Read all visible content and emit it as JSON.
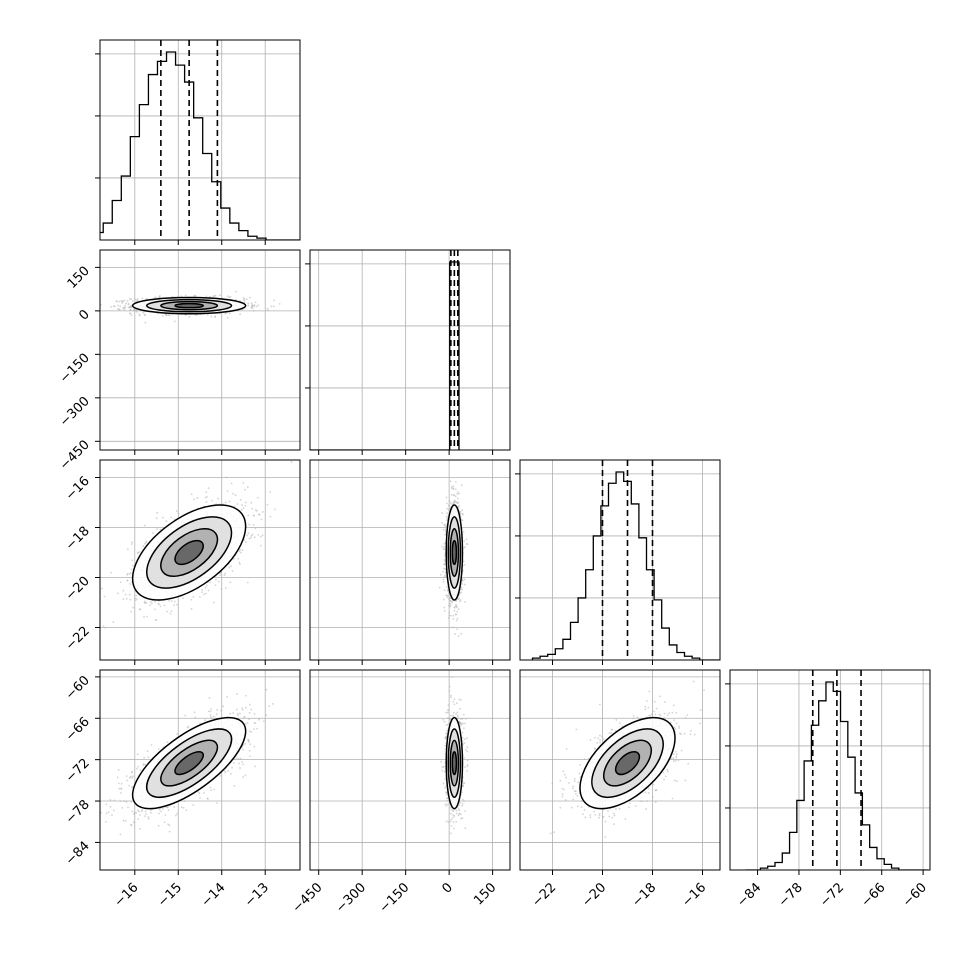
{
  "figure": {
    "kind": "corner-plot",
    "background": "#ffffff"
  },
  "chart_data": {
    "type": "corner",
    "parameters": [
      {
        "range": [
          -16.8,
          -12.2
        ],
        "ticks": [
          -16,
          -15,
          -14,
          -13
        ],
        "tick_labels": [
          "−16",
          "−15",
          "−14",
          "−13"
        ],
        "mean": -14.75,
        "std": 0.65,
        "quantiles": [
          -15.4,
          -14.75,
          -14.1
        ]
      },
      {
        "range": [
          -480,
          210
        ],
        "ticks": [
          -450,
          -300,
          -150,
          0,
          150
        ],
        "tick_labels": [
          "−450",
          "−300",
          "−150",
          "0",
          "150"
        ],
        "mean": 18,
        "std": 14,
        "quantiles": [
          6,
          18,
          30
        ]
      },
      {
        "range": [
          -23.3,
          -15.3
        ],
        "ticks": [
          -22,
          -20,
          -18,
          -16
        ],
        "tick_labels": [
          "−22",
          "−20",
          "−18",
          "−16"
        ],
        "mean": -19,
        "std": 0.95,
        "quantiles": [
          -20,
          -19,
          -18
        ]
      },
      {
        "range": [
          -88,
          -59
        ],
        "ticks": [
          -84,
          -78,
          -72,
          -66,
          -60
        ],
        "tick_labels": [
          "−84",
          "−78",
          "−72",
          "−66",
          "−60"
        ],
        "mean": -72.5,
        "std": 3.3,
        "quantiles": [
          -76,
          -72.5,
          -69
        ]
      }
    ],
    "histograms": [
      {
        "bins": 25,
        "counts": [
          0.01,
          0.02,
          0.04,
          0.09,
          0.21,
          0.34,
          0.55,
          0.72,
          0.88,
          0.95,
          1.0,
          0.93,
          0.84,
          0.65,
          0.46,
          0.31,
          0.17,
          0.09,
          0.05,
          0.02,
          0.01,
          0.0,
          0.0,
          0.0,
          0.0
        ]
      },
      {
        "bins": 1,
        "counts": [
          1.0
        ]
      },
      {
        "bins": 25,
        "counts": [
          0.01,
          0.02,
          0.03,
          0.06,
          0.11,
          0.2,
          0.33,
          0.48,
          0.66,
          0.82,
          0.94,
          1.0,
          0.95,
          0.83,
          0.65,
          0.48,
          0.32,
          0.17,
          0.08,
          0.04,
          0.02,
          0.01,
          0.0,
          0.0,
          0.0
        ]
      },
      {
        "bins": 25,
        "counts": [
          0.0,
          0.0,
          0.01,
          0.02,
          0.04,
          0.09,
          0.2,
          0.37,
          0.58,
          0.77,
          0.9,
          1.0,
          0.95,
          0.79,
          0.6,
          0.41,
          0.24,
          0.12,
          0.06,
          0.03,
          0.01,
          0.0,
          0.0,
          0.0,
          0.0
        ]
      }
    ],
    "correlations": {
      "1-0": 0.0,
      "2-0": 0.55,
      "2-1": 0.0,
      "3-0": 0.7,
      "3-1": 0.0,
      "3-2": 0.55
    },
    "contour_levels_sigma": [
      0.5,
      1.0,
      1.5,
      2.0
    ],
    "quantile_line_style": "dashed",
    "grid": true,
    "colors": {
      "contour": "#000000",
      "scatter": "#b0b0b0",
      "grid": "#b0b0b0",
      "hist": "#000000"
    }
  }
}
